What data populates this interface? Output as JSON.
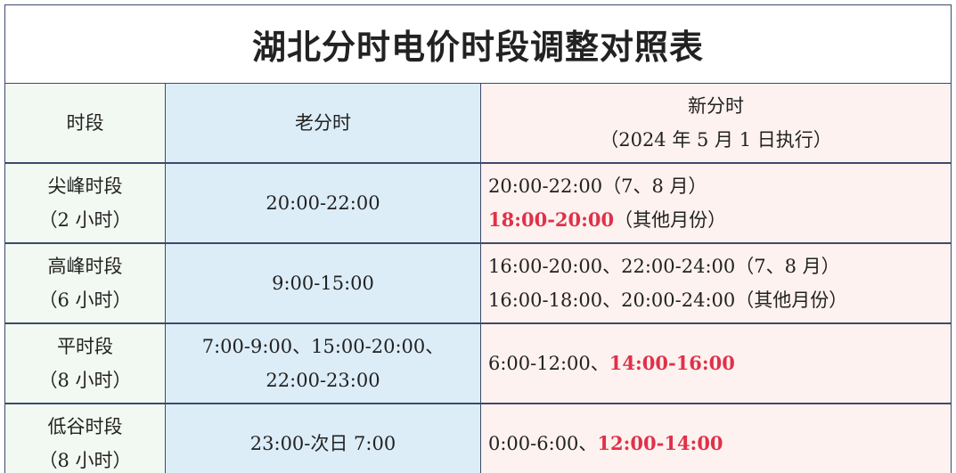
{
  "title": "湖北分时电价时段调整对照表",
  "header": {
    "period": "时段",
    "old": "老分时",
    "new": [
      "新分时",
      "（2024 年 5 月 1 日执行）"
    ]
  },
  "rows": [
    {
      "period": [
        "尖峰时段",
        "（2 小时）"
      ],
      "old": [
        "20:00-22:00"
      ],
      "new": [
        [
          {
            "text": "20:00-22:00（7、8 月）"
          }
        ],
        [
          {
            "text": "18:00-20:00",
            "highlight": true
          },
          {
            "text": "（其他月份）"
          }
        ]
      ]
    },
    {
      "period": [
        "高峰时段",
        "（6 小时）"
      ],
      "old": [
        "9:00-15:00"
      ],
      "new": [
        [
          {
            "text": "16:00-20:00、22:00-24:00（7、8 月）"
          }
        ],
        [
          {
            "text": "16:00-18:00、20:00-24:00（其他月份）"
          }
        ]
      ]
    },
    {
      "period": [
        "平时段",
        "（8 小时）"
      ],
      "old": [
        "7:00-9:00、15:00-20:00、",
        "22:00-23:00"
      ],
      "new": [
        [
          {
            "text": "6:00-12:00、"
          },
          {
            "text": "14:00-16:00",
            "highlight": true
          }
        ]
      ]
    },
    {
      "period": [
        "低谷时段",
        "（8 小时）"
      ],
      "old": [
        "23:00-次日 7:00"
      ],
      "new": [
        [
          {
            "text": "0:00-6:00、"
          },
          {
            "text": "12:00-14:00",
            "highlight": true
          }
        ]
      ]
    }
  ]
}
